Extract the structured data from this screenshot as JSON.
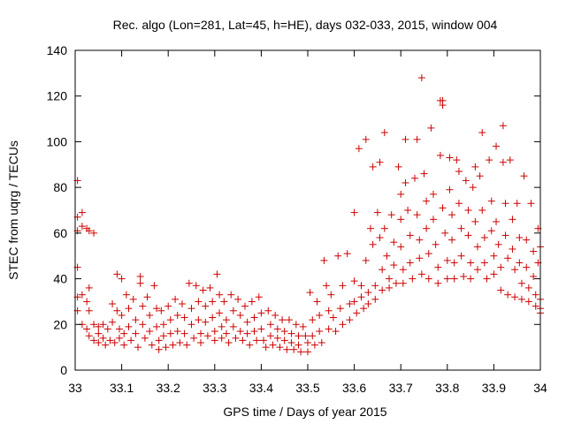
{
  "chart_data": {
    "type": "scatter",
    "title": "Rec. algo (Lon=281, Lat=45, h=HE), days 032-033, 2015, window 004",
    "xlabel": "GPS time / Days of year 2015",
    "ylabel": "STEC from uqrg / TECUs",
    "xlim": [
      33,
      34
    ],
    "ylim": [
      0,
      140
    ],
    "xticks": [
      "33",
      "33.1",
      "33.2",
      "33.3",
      "33.4",
      "33.5",
      "33.6",
      "33.7",
      "33.8",
      "33.9",
      "34"
    ],
    "yticks": [
      "0",
      "20",
      "40",
      "60",
      "80",
      "100",
      "120",
      "140"
    ],
    "grid": false,
    "marker": "+",
    "color": "#cc0000",
    "points": [
      [
        33.005,
        83
      ],
      [
        33.005,
        67
      ],
      [
        33.005,
        61
      ],
      [
        33.005,
        45
      ],
      [
        33.005,
        32
      ],
      [
        33.005,
        26
      ],
      [
        33.015,
        69
      ],
      [
        33.015,
        63
      ],
      [
        33.015,
        33
      ],
      [
        33.015,
        20
      ],
      [
        33.025,
        62
      ],
      [
        33.025,
        30
      ],
      [
        33.025,
        18
      ],
      [
        33.03,
        61
      ],
      [
        33.03,
        36
      ],
      [
        33.03,
        26
      ],
      [
        33.03,
        15
      ],
      [
        33.04,
        60
      ],
      [
        33.04,
        20
      ],
      [
        33.04,
        13
      ],
      [
        33.05,
        19
      ],
      [
        33.05,
        16
      ],
      [
        33.05,
        12
      ],
      [
        33.06,
        20
      ],
      [
        33.06,
        14
      ],
      [
        33.065,
        11
      ],
      [
        33.07,
        18
      ],
      [
        33.075,
        13
      ],
      [
        33.08,
        29
      ],
      [
        33.08,
        21
      ],
      [
        33.085,
        12
      ],
      [
        33.09,
        42
      ],
      [
        33.09,
        26
      ],
      [
        33.095,
        18
      ],
      [
        33.095,
        14
      ],
      [
        33.1,
        40
      ],
      [
        33.1,
        24
      ],
      [
        33.105,
        16
      ],
      [
        33.105,
        11
      ],
      [
        33.11,
        33
      ],
      [
        33.115,
        27
      ],
      [
        33.115,
        19
      ],
      [
        33.12,
        13
      ],
      [
        33.125,
        31
      ],
      [
        33.13,
        22
      ],
      [
        33.13,
        16
      ],
      [
        33.135,
        10
      ],
      [
        33.14,
        41
      ],
      [
        33.14,
        38
      ],
      [
        33.145,
        28
      ],
      [
        33.145,
        20
      ],
      [
        33.15,
        14
      ],
      [
        33.155,
        32
      ],
      [
        33.16,
        24
      ],
      [
        33.16,
        17
      ],
      [
        33.165,
        11
      ],
      [
        33.17,
        37
      ],
      [
        33.175,
        27
      ],
      [
        33.175,
        19
      ],
      [
        33.18,
        13
      ],
      [
        33.18,
        9
      ],
      [
        33.185,
        26
      ],
      [
        33.19,
        20
      ],
      [
        33.19,
        15
      ],
      [
        33.195,
        10
      ],
      [
        33.2,
        28
      ],
      [
        33.205,
        22
      ],
      [
        33.205,
        16
      ],
      [
        33.21,
        11
      ],
      [
        33.215,
        31
      ],
      [
        33.22,
        24
      ],
      [
        33.22,
        17
      ],
      [
        33.225,
        12
      ],
      [
        33.23,
        29
      ],
      [
        33.235,
        23
      ],
      [
        33.235,
        16
      ],
      [
        33.24,
        11
      ],
      [
        33.245,
        38
      ],
      [
        33.25,
        27
      ],
      [
        33.25,
        20
      ],
      [
        33.255,
        14
      ],
      [
        33.26,
        37
      ],
      [
        33.265,
        30
      ],
      [
        33.265,
        22
      ],
      [
        33.27,
        16
      ],
      [
        33.27,
        12
      ],
      [
        33.275,
        35
      ],
      [
        33.28,
        28
      ],
      [
        33.28,
        21
      ],
      [
        33.285,
        15
      ],
      [
        33.29,
        36
      ],
      [
        33.295,
        30
      ],
      [
        33.295,
        23
      ],
      [
        33.3,
        17
      ],
      [
        33.3,
        13
      ],
      [
        33.305,
        42
      ],
      [
        33.31,
        33
      ],
      [
        33.31,
        25
      ],
      [
        33.315,
        19
      ],
      [
        33.315,
        14
      ],
      [
        33.32,
        30
      ],
      [
        33.325,
        22
      ],
      [
        33.325,
        16
      ],
      [
        33.33,
        12
      ],
      [
        33.335,
        33
      ],
      [
        33.34,
        26
      ],
      [
        33.34,
        19
      ],
      [
        33.345,
        14
      ],
      [
        33.35,
        31
      ],
      [
        33.355,
        24
      ],
      [
        33.355,
        17
      ],
      [
        33.36,
        13
      ],
      [
        33.365,
        28
      ],
      [
        33.37,
        21
      ],
      [
        33.37,
        16
      ],
      [
        33.375,
        11
      ],
      [
        33.38,
        30
      ],
      [
        33.385,
        23
      ],
      [
        33.385,
        17
      ],
      [
        33.39,
        13
      ],
      [
        33.395,
        32
      ],
      [
        33.4,
        25
      ],
      [
        33.4,
        18
      ],
      [
        33.405,
        13
      ],
      [
        33.41,
        10
      ],
      [
        33.415,
        26
      ],
      [
        33.42,
        20
      ],
      [
        33.42,
        15
      ],
      [
        33.425,
        11
      ],
      [
        33.43,
        24
      ],
      [
        33.435,
        18
      ],
      [
        33.435,
        14
      ],
      [
        33.44,
        10
      ],
      [
        33.445,
        22
      ],
      [
        33.45,
        17
      ],
      [
        33.45,
        13
      ],
      [
        33.455,
        9
      ],
      [
        33.46,
        22
      ],
      [
        33.465,
        16
      ],
      [
        33.465,
        12
      ],
      [
        33.47,
        9
      ],
      [
        33.475,
        20
      ],
      [
        33.48,
        15
      ],
      [
        33.48,
        11
      ],
      [
        33.485,
        8
      ],
      [
        33.49,
        19
      ],
      [
        33.495,
        15
      ],
      [
        33.5,
        12
      ],
      [
        33.5,
        8
      ],
      [
        33.505,
        34
      ],
      [
        33.51,
        22
      ],
      [
        33.51,
        15
      ],
      [
        33.515,
        11
      ],
      [
        33.52,
        30
      ],
      [
        33.525,
        24
      ],
      [
        33.525,
        17
      ],
      [
        33.53,
        12
      ],
      [
        33.535,
        48
      ],
      [
        33.54,
        37
      ],
      [
        33.545,
        26
      ],
      [
        33.545,
        18
      ],
      [
        33.55,
        33
      ],
      [
        33.555,
        23
      ],
      [
        33.56,
        17
      ],
      [
        33.565,
        50
      ],
      [
        33.57,
        27
      ],
      [
        33.575,
        20
      ],
      [
        33.575,
        37
      ],
      [
        33.585,
        51
      ],
      [
        33.59,
        29
      ],
      [
        33.59,
        22
      ],
      [
        33.6,
        69
      ],
      [
        33.6,
        39
      ],
      [
        33.6,
        30
      ],
      [
        33.605,
        25
      ],
      [
        33.61,
        97
      ],
      [
        33.615,
        37
      ],
      [
        33.615,
        32
      ],
      [
        33.62,
        27
      ],
      [
        33.625,
        101
      ],
      [
        33.625,
        48
      ],
      [
        33.63,
        34
      ],
      [
        33.63,
        29
      ],
      [
        33.635,
        62
      ],
      [
        33.64,
        89
      ],
      [
        33.64,
        55
      ],
      [
        33.645,
        37
      ],
      [
        33.645,
        31
      ],
      [
        33.65,
        69
      ],
      [
        33.655,
        91
      ],
      [
        33.655,
        58
      ],
      [
        33.66,
        44
      ],
      [
        33.66,
        35
      ],
      [
        33.665,
        104
      ],
      [
        33.665,
        62
      ],
      [
        33.67,
        50
      ],
      [
        33.675,
        40
      ],
      [
        33.675,
        36
      ],
      [
        33.68,
        68
      ],
      [
        33.685,
        56
      ],
      [
        33.685,
        46
      ],
      [
        33.69,
        38
      ],
      [
        33.695,
        89
      ],
      [
        33.7,
        77
      ],
      [
        33.7,
        66
      ],
      [
        33.7,
        54
      ],
      [
        33.705,
        44
      ],
      [
        33.705,
        38
      ],
      [
        33.71,
        101
      ],
      [
        33.71,
        82
      ],
      [
        33.715,
        70
      ],
      [
        33.72,
        59
      ],
      [
        33.72,
        47
      ],
      [
        33.725,
        40
      ],
      [
        33.73,
        84
      ],
      [
        33.735,
        101
      ],
      [
        33.735,
        68
      ],
      [
        33.74,
        57
      ],
      [
        33.74,
        49
      ],
      [
        33.745,
        42
      ],
      [
        33.745,
        128
      ],
      [
        33.75,
        86
      ],
      [
        33.755,
        74
      ],
      [
        33.755,
        62
      ],
      [
        33.76,
        51
      ],
      [
        33.76,
        40
      ],
      [
        33.765,
        106
      ],
      [
        33.77,
        77
      ],
      [
        33.77,
        66
      ],
      [
        33.775,
        55
      ],
      [
        33.78,
        45
      ],
      [
        33.78,
        38
      ],
      [
        33.785,
        118
      ],
      [
        33.785,
        94
      ],
      [
        33.79,
        118
      ],
      [
        33.79,
        116
      ],
      [
        33.79,
        71
      ],
      [
        33.795,
        60
      ],
      [
        33.8,
        48
      ],
      [
        33.8,
        40
      ],
      [
        33.805,
        93
      ],
      [
        33.805,
        79
      ],
      [
        33.81,
        68
      ],
      [
        33.81,
        57
      ],
      [
        33.815,
        47
      ],
      [
        33.815,
        40
      ],
      [
        33.82,
        92
      ],
      [
        33.825,
        87
      ],
      [
        33.825,
        73
      ],
      [
        33.83,
        62
      ],
      [
        33.83,
        50
      ],
      [
        33.835,
        41
      ],
      [
        33.84,
        83
      ],
      [
        33.845,
        70
      ],
      [
        33.845,
        59
      ],
      [
        33.85,
        47
      ],
      [
        33.85,
        40
      ],
      [
        33.855,
        80
      ],
      [
        33.86,
        89
      ],
      [
        33.86,
        65
      ],
      [
        33.865,
        54
      ],
      [
        33.865,
        44
      ],
      [
        33.87,
        85
      ],
      [
        33.875,
        104
      ],
      [
        33.875,
        70
      ],
      [
        33.88,
        58
      ],
      [
        33.88,
        47
      ],
      [
        33.885,
        40
      ],
      [
        33.89,
        92
      ],
      [
        33.895,
        74
      ],
      [
        33.895,
        61
      ],
      [
        33.9,
        50
      ],
      [
        33.9,
        42
      ],
      [
        33.905,
        98
      ],
      [
        33.905,
        65
      ],
      [
        33.91,
        55
      ],
      [
        33.915,
        45
      ],
      [
        33.915,
        35
      ],
      [
        33.92,
        107
      ],
      [
        33.92,
        91
      ],
      [
        33.925,
        73
      ],
      [
        33.925,
        59
      ],
      [
        33.93,
        49
      ],
      [
        33.93,
        33
      ],
      [
        33.935,
        92
      ],
      [
        33.94,
        66
      ],
      [
        33.94,
        53
      ],
      [
        33.945,
        44
      ],
      [
        33.945,
        32
      ],
      [
        33.95,
        73
      ],
      [
        33.955,
        58
      ],
      [
        33.955,
        47
      ],
      [
        33.96,
        38
      ],
      [
        33.96,
        31
      ],
      [
        33.965,
        85
      ],
      [
        33.97,
        57
      ],
      [
        33.97,
        45
      ],
      [
        33.975,
        36
      ],
      [
        33.975,
        30
      ],
      [
        33.98,
        73
      ],
      [
        33.985,
        52
      ],
      [
        33.985,
        41
      ],
      [
        33.99,
        33
      ],
      [
        33.99,
        28
      ],
      [
        33.995,
        62
      ],
      [
        33.995,
        47
      ],
      [
        34.0,
        54
      ],
      [
        34.0,
        31
      ],
      [
        34.0,
        27
      ],
      [
        34.0,
        25
      ]
    ]
  }
}
